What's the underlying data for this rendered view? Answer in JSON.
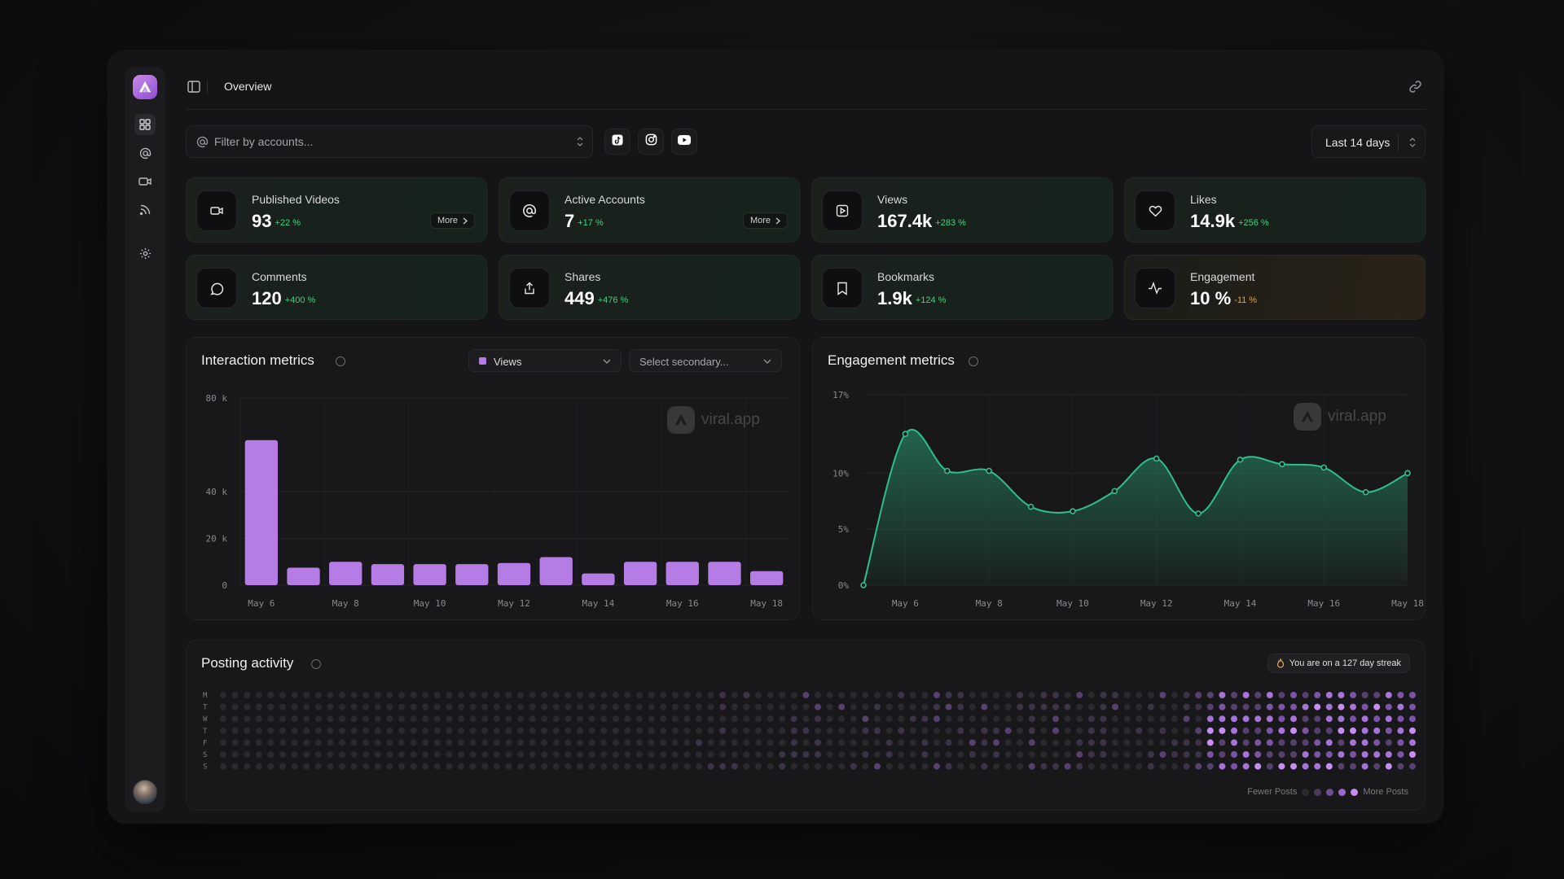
{
  "topbar": {
    "title": "Overview"
  },
  "filter": {
    "placeholder": "Filter by accounts..."
  },
  "platforms": [
    {
      "name": "tiktok-icon"
    },
    {
      "name": "instagram-icon"
    },
    {
      "name": "youtube-icon"
    }
  ],
  "date_range": {
    "label": "Last 14 days"
  },
  "stats": [
    {
      "title": "Published Videos",
      "value": "93",
      "change": "+22 %",
      "icon": "video-icon",
      "more": "More",
      "status": "up"
    },
    {
      "title": "Active Accounts",
      "value": "7",
      "change": "+17 %",
      "icon": "at-icon",
      "more": "More",
      "status": "up"
    },
    {
      "title": "Views",
      "value": "167.4k",
      "change": "+283 %",
      "icon": "play-icon",
      "status": "up"
    },
    {
      "title": "Likes",
      "value": "14.9k",
      "change": "+256 %",
      "icon": "heart-icon",
      "status": "up"
    },
    {
      "title": "Comments",
      "value": "120",
      "change": "+400 %",
      "icon": "comment-icon",
      "status": "up"
    },
    {
      "title": "Shares",
      "value": "449",
      "change": "+476 %",
      "icon": "share-icon",
      "status": "up"
    },
    {
      "title": "Bookmarks",
      "value": "1.9k",
      "change": "+124 %",
      "icon": "bookmark-icon",
      "status": "up"
    },
    {
      "title": "Engagement",
      "value": "10 %",
      "change": "-11 %",
      "icon": "activity-icon",
      "status": "down"
    }
  ],
  "interaction": {
    "title": "Interaction metrics",
    "primary": "Views",
    "secondary_placeholder": "Select secondary...",
    "watermark": "viral.app"
  },
  "engagement": {
    "title": "Engagement metrics",
    "watermark": "viral.app"
  },
  "posting": {
    "title": "Posting activity",
    "streak": "You are on a 127 day streak",
    "days": [
      "M",
      "T",
      "W",
      "T",
      "F",
      "S",
      "S"
    ],
    "legend_low": "Fewer Posts",
    "legend_high": "More Posts"
  },
  "colors": {
    "accent": "#b57ce6",
    "positive": "#3ed47e",
    "negative": "#e3a64a",
    "line": "#2fbf8a"
  },
  "chart_data": [
    {
      "type": "bar",
      "series": [
        {
          "name": "Views",
          "values": [
            62000,
            7500,
            10000,
            9000,
            9000,
            9000,
            9500,
            12000,
            5000,
            10000,
            10000,
            10000,
            6000
          ]
        }
      ],
      "categories": [
        "May 6",
        "May 7",
        "May 8",
        "May 9",
        "May 10",
        "May 11",
        "May 12",
        "May 13",
        "May 14",
        "May 15",
        "May 16",
        "May 17",
        "May 18"
      ],
      "x_tick_labels": [
        "May 6",
        "May 8",
        "May 10",
        "May 12",
        "May 14",
        "May 16",
        "May 18"
      ],
      "y_ticks": [
        0,
        20000,
        40000,
        80000
      ],
      "y_tick_labels": [
        "0",
        "20 k",
        "40 k",
        "80 k"
      ],
      "ylim": [
        0,
        80000
      ],
      "grid": true
    },
    {
      "type": "area",
      "x": [
        "May 5",
        "May 6",
        "May 7",
        "May 8",
        "May 9",
        "May 10",
        "May 11",
        "May 12",
        "May 13",
        "May 14",
        "May 15",
        "May 16",
        "May 17",
        "May 18"
      ],
      "series": [
        {
          "name": "Engagement",
          "values": [
            0,
            13.5,
            10.2,
            10.2,
            7,
            6.6,
            8.4,
            11.3,
            6.4,
            11.2,
            10.8,
            10.5,
            8.3,
            10
          ]
        }
      ],
      "x_tick_labels": [
        "May 6",
        "May 8",
        "May 10",
        "May 12",
        "May 14",
        "May 16",
        "May 18"
      ],
      "y_ticks": [
        0,
        5,
        10,
        17
      ],
      "y_tick_labels": [
        "0%",
        "5%",
        "10%",
        "17%"
      ],
      "ylim": [
        0,
        17
      ],
      "grid": true
    }
  ]
}
